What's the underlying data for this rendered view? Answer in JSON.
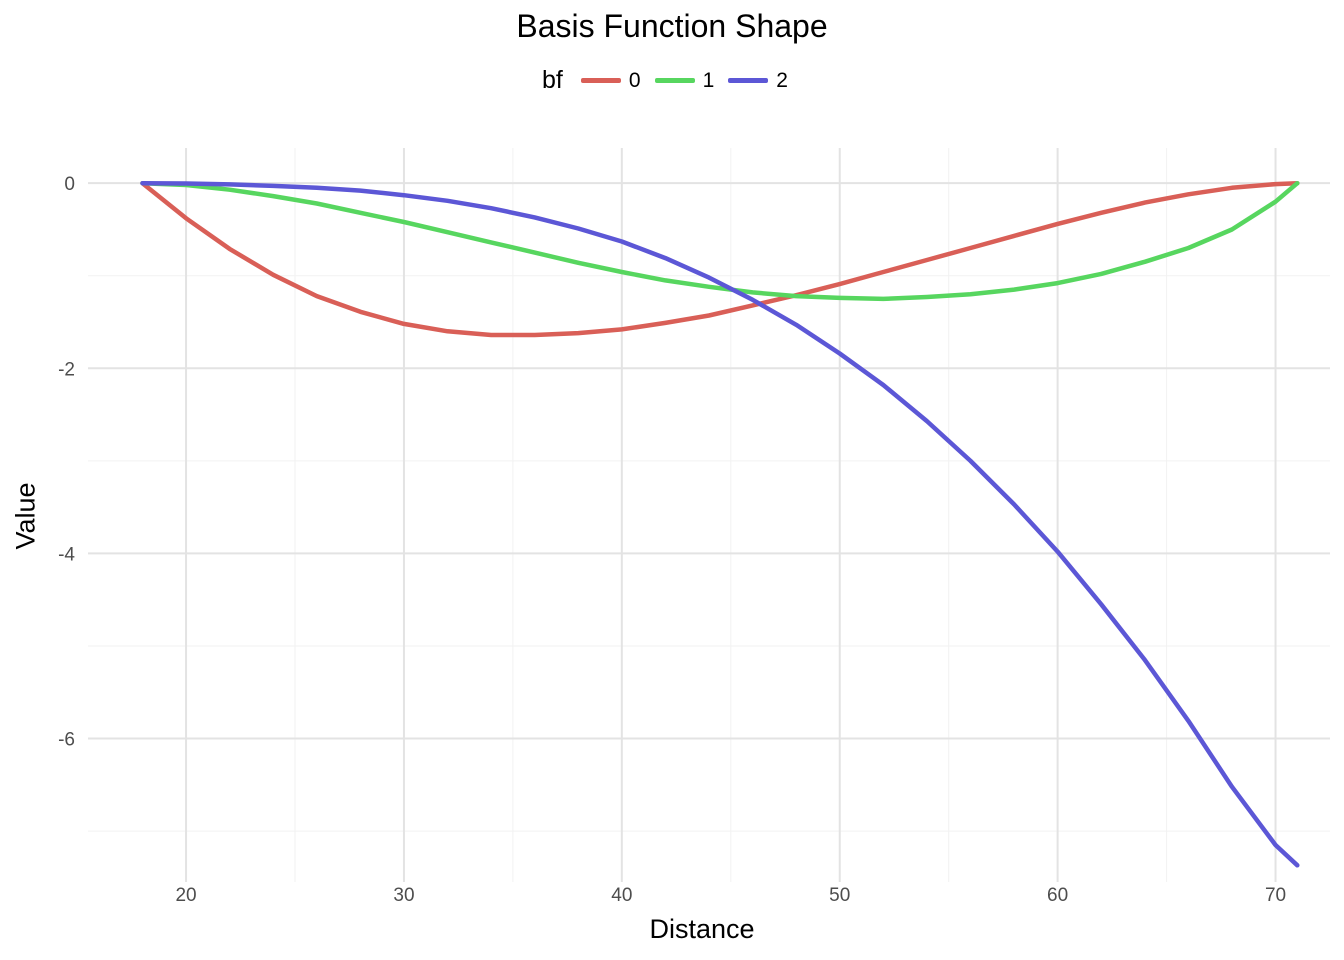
{
  "chart_data": {
    "type": "line",
    "title": "Basis Function Shape",
    "xlabel": "Distance",
    "ylabel": "Value",
    "legend_title": "bf",
    "legend_position": "top",
    "grid": true,
    "xlim": [
      15.5,
      72.5
    ],
    "ylim": [
      -7.55,
      0.38
    ],
    "x_ticks": [
      20,
      30,
      40,
      50,
      60,
      70
    ],
    "y_ticks": [
      0,
      -2,
      -4,
      -6
    ],
    "x_tick_labels": [
      "20",
      "30",
      "40",
      "50",
      "60",
      "70"
    ],
    "y_tick_labels": [
      "0",
      "-2",
      "-4",
      "-6"
    ],
    "x": [
      18,
      20,
      22,
      24,
      26,
      28,
      30,
      32,
      34,
      36,
      38,
      40,
      42,
      44,
      46,
      48,
      50,
      52,
      54,
      56,
      58,
      60,
      62,
      64,
      66,
      68,
      70,
      71
    ],
    "series": [
      {
        "name": "0",
        "color": "#d95f57",
        "values": [
          0,
          -0.38,
          -0.71,
          -0.99,
          -1.22,
          -1.39,
          -1.52,
          -1.6,
          -1.64,
          -1.64,
          -1.62,
          -1.58,
          -1.51,
          -1.43,
          -1.32,
          -1.21,
          -1.09,
          -0.96,
          -0.83,
          -0.7,
          -0.57,
          -0.44,
          -0.32,
          -0.21,
          -0.12,
          -0.05,
          -0.01,
          0
        ]
      },
      {
        "name": "1",
        "color": "#57d65f",
        "values": [
          0,
          -0.02,
          -0.07,
          -0.14,
          -0.22,
          -0.32,
          -0.42,
          -0.53,
          -0.64,
          -0.75,
          -0.86,
          -0.96,
          -1.05,
          -1.12,
          -1.18,
          -1.22,
          -1.24,
          -1.25,
          -1.23,
          -1.2,
          -1.15,
          -1.08,
          -0.98,
          -0.85,
          -0.7,
          -0.5,
          -0.2,
          0
        ]
      },
      {
        "name": "2",
        "color": "#5c57d6",
        "values": [
          0,
          -0.004,
          -0.013,
          -0.03,
          -0.05,
          -0.08,
          -0.13,
          -0.19,
          -0.27,
          -0.37,
          -0.49,
          -0.63,
          -0.81,
          -1.02,
          -1.26,
          -1.53,
          -1.84,
          -2.18,
          -2.57,
          -3.0,
          -3.47,
          -3.98,
          -4.55,
          -5.15,
          -5.81,
          -6.52,
          -7.15,
          -7.37
        ]
      }
    ]
  }
}
